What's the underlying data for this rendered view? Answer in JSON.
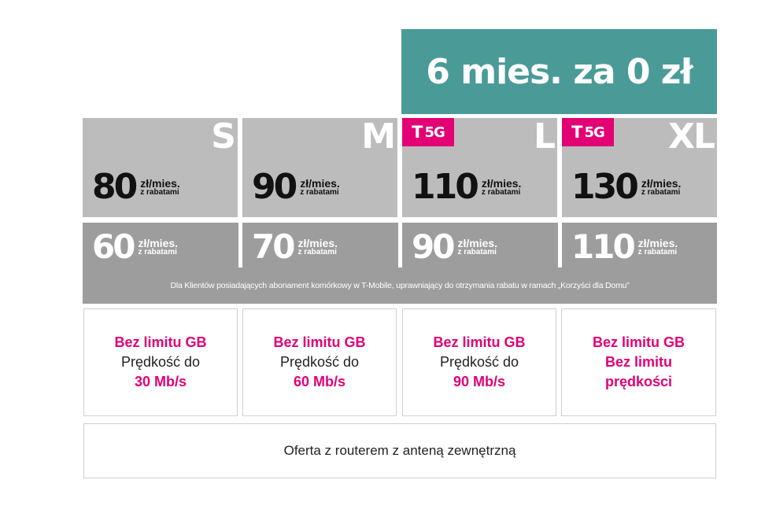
{
  "promo": {
    "text": "6 mies. za 0 zł"
  },
  "plans": [
    {
      "tier": "S",
      "badge": "",
      "price": "80",
      "price_unit": "zł/mies.",
      "price_note": "z rabatami",
      "discount_price": "60",
      "discount_unit": "zł/mies.",
      "discount_note": "z rabatami",
      "data_line": "Bez limitu GB",
      "speed_line1": "Prędkość do",
      "speed_line2": "30 Mb/s"
    },
    {
      "tier": "M",
      "badge": "",
      "price": "90",
      "price_unit": "zł/mies.",
      "price_note": "z rabatami",
      "discount_price": "70",
      "discount_unit": "zł/mies.",
      "discount_note": "z rabatami",
      "data_line": "Bez limitu GB",
      "speed_line1": "Prędkość do",
      "speed_line2": "60 Mb/s"
    },
    {
      "tier": "L",
      "badge": "5G",
      "price": "110",
      "price_unit": "zł/mies.",
      "price_note": "z rabatami",
      "discount_price": "90",
      "discount_unit": "zł/mies.",
      "discount_note": "z rabatami",
      "data_line": "Bez limitu GB",
      "speed_line1": "Prędkość do",
      "speed_line2": "90 Mb/s"
    },
    {
      "tier": "XL",
      "badge": "5G",
      "price": "130",
      "price_unit": "zł/mies.",
      "price_note": "z rabatami",
      "discount_price": "110",
      "discount_unit": "zł/mies.",
      "discount_note": "z rabatami",
      "data_line": "Bez limitu GB",
      "speed_line1": "Bez limitu",
      "speed_line2": "prędkości"
    }
  ],
  "badge_logo": "T",
  "disclaimer": "Dla Klientów posiadających abonament komórkowy w T-Mobile, uprawniający do otrzymania rabatu w ramach „Korzyści dla Domu”",
  "offer": "Oferta z routerem z anteną zewnętrzną",
  "colors": {
    "magenta": "#e20074",
    "teal": "#4a9b98",
    "top_gray": "#bcbcbc",
    "bottom_gray": "#9d9d9d"
  }
}
